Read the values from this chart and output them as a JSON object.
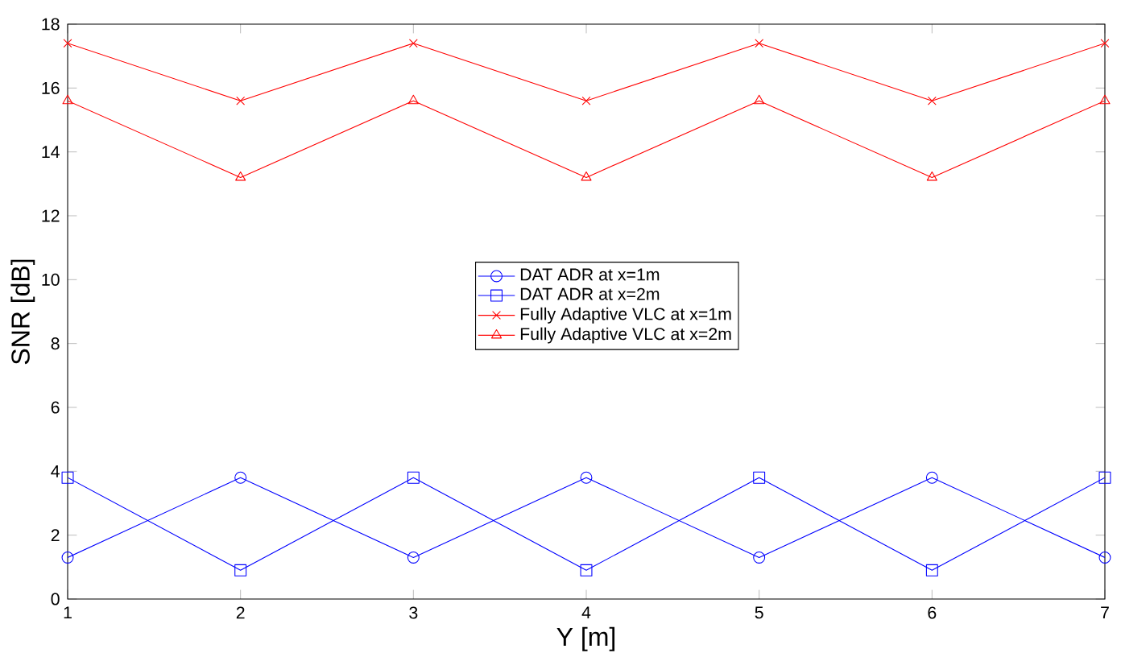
{
  "chart_data": {
    "type": "line",
    "xlabel": "Y [m]",
    "ylabel": "SNR [dB]",
    "x": [
      1,
      2,
      3,
      4,
      5,
      6,
      7
    ],
    "xlim": [
      1,
      7
    ],
    "xticks": [
      1,
      2,
      3,
      4,
      5,
      6,
      7
    ],
    "ylim": [
      0,
      18
    ],
    "yticks": [
      0,
      2,
      4,
      6,
      8,
      10,
      12,
      14,
      16,
      18
    ],
    "legend": "center",
    "line_style": "solid",
    "series": [
      {
        "name": "DAT ADR at x=1m",
        "color": "#0000ff",
        "marker": "circle",
        "values": [
          1.3,
          3.8,
          1.3,
          3.8,
          1.3,
          3.8,
          1.3
        ]
      },
      {
        "name": "DAT ADR at x=2m",
        "color": "#0000ff",
        "marker": "square",
        "values": [
          3.8,
          0.9,
          3.8,
          0.9,
          3.8,
          0.9,
          3.8
        ]
      },
      {
        "name": "Fully Adaptive VLC at x=1m",
        "color": "#ff0000",
        "marker": "cross",
        "values": [
          17.4,
          15.6,
          17.4,
          15.6,
          17.4,
          15.6,
          17.4
        ]
      },
      {
        "name": "Fully Adaptive VLC at x=2m",
        "color": "#ff0000",
        "marker": "triangle",
        "values": [
          15.6,
          13.2,
          15.6,
          13.2,
          15.6,
          13.2,
          15.6
        ]
      }
    ]
  }
}
